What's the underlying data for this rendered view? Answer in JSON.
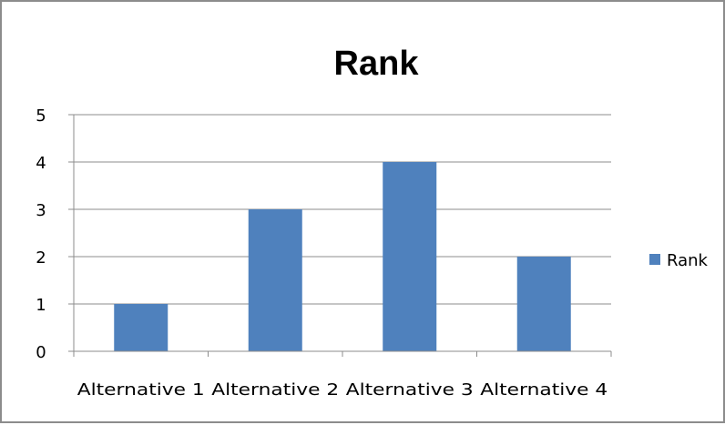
{
  "chart_data": {
    "type": "bar",
    "title": "Rank",
    "xlabel": "",
    "ylabel": "",
    "categories": [
      "Alternative 1",
      "Alternative 2",
      "Alternative 3",
      "Alternative 4"
    ],
    "series": [
      {
        "name": "Rank",
        "values": [
          1,
          3,
          4,
          2
        ],
        "color": "#4f81bd"
      }
    ],
    "ylim": [
      0,
      5
    ],
    "yticks": [
      "0",
      "1",
      "2",
      "3",
      "4",
      "5"
    ],
    "grid": true,
    "legend_position": "right"
  }
}
